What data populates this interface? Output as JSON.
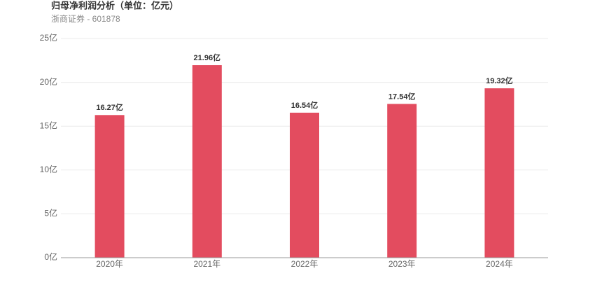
{
  "chart_data": {
    "type": "bar",
    "title": "归母净利润分析（单位：亿元）",
    "subtitle": "浙商证券 - 601878",
    "categories": [
      "2020年",
      "2021年",
      "2022年",
      "2023年",
      "2024年"
    ],
    "values": [
      16.27,
      21.96,
      16.54,
      17.54,
      19.32
    ],
    "value_labels": [
      "16.27亿",
      "21.96亿",
      "16.54亿",
      "17.54亿",
      "19.32亿"
    ],
    "color": "#e34c5f",
    "ylim": [
      0,
      25
    ],
    "yticks": [
      {
        "value": 0,
        "label": "0亿"
      },
      {
        "value": 5,
        "label": "5亿"
      },
      {
        "value": 10,
        "label": "10亿"
      },
      {
        "value": 15,
        "label": "15亿"
      },
      {
        "value": 20,
        "label": "20亿"
      },
      {
        "value": 25,
        "label": "25亿"
      }
    ],
    "grid": true
  }
}
